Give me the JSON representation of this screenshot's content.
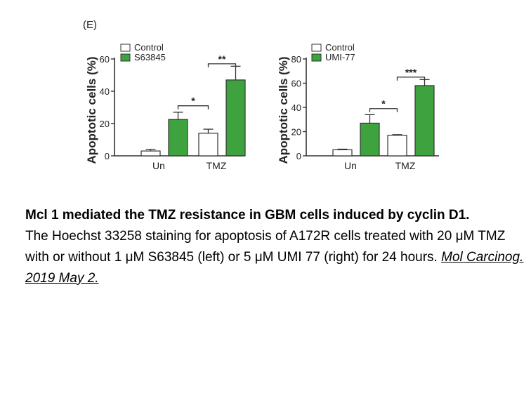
{
  "panel_label": "(E)",
  "colors": {
    "control": "#ffffff",
    "treated": "#3ea33e",
    "stroke": "#333333"
  },
  "chart_data": [
    {
      "type": "bar",
      "ylabel": "Apoptotic cells (%)",
      "ylim": [
        0,
        60
      ],
      "yticks": [
        0,
        20,
        40,
        60
      ],
      "categories": [
        "Un",
        "TMZ"
      ],
      "series": [
        {
          "name": "Control",
          "values": [
            3,
            14
          ],
          "errors": [
            1,
            2.5
          ]
        },
        {
          "name": "S63845",
          "values": [
            22.5,
            47
          ],
          "errors": [
            4.5,
            8.5
          ]
        }
      ],
      "legend": "top-left",
      "annotations": [
        {
          "label": "*",
          "from_group": 0,
          "to_group": 1,
          "y": 31
        },
        {
          "label": "**",
          "from_group": 1,
          "to_group": 1,
          "y": 57
        }
      ]
    },
    {
      "type": "bar",
      "ylabel": "Apoptotic cells (%)",
      "ylim": [
        0,
        80
      ],
      "yticks": [
        0,
        20,
        40,
        60,
        80
      ],
      "categories": [
        "Un",
        "TMZ"
      ],
      "series": [
        {
          "name": "Control",
          "values": [
            5,
            17
          ],
          "errors": [
            0.5,
            0.5
          ]
        },
        {
          "name": "UMI-77",
          "values": [
            27,
            58
          ],
          "errors": [
            7,
            5
          ]
        }
      ],
      "legend": "top-left",
      "annotations": [
        {
          "label": "*",
          "from_group": 0,
          "to_group": 1,
          "y": 39
        },
        {
          "label": "***",
          "from_group": 1,
          "to_group": 1,
          "y": 65
        }
      ]
    }
  ],
  "caption": {
    "title": "Mcl 1 mediated the TMZ resistance in GBM cells induced by cyclin D1.",
    "body": "The Hoechst 33258 staining for apoptosis of A172R cells treated with 20 μM TMZ with or without 1 μM S63845 (left) or 5 μM UMI 77 (right) for 24 hours. ",
    "reference": "Mol Carcinog. 2019 May 2. "
  }
}
